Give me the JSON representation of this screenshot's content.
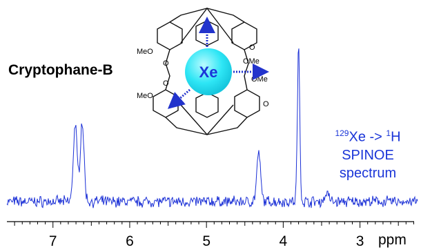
{
  "compound": {
    "name": "Cryptophane-B",
    "guest": "Xe",
    "substituent_label": "MeO",
    "substituent_label_alt": "OMe",
    "oxygen_label": "O"
  },
  "annotation": {
    "line1_mass_a": "129",
    "line1_text_a": "Xe -> ",
    "line1_mass_b": "1",
    "line1_text_b": "H",
    "line2": "SPINOE",
    "line3": "spectrum"
  },
  "colors": {
    "spectrum": "#1a2fd6",
    "annotation": "#1a35d8",
    "xenon": "#2ee6f5",
    "arrows": "#2233cc"
  },
  "chart_data": {
    "type": "line",
    "title": "",
    "xlabel": "ppm",
    "ylabel": "",
    "xlim": [
      7.6,
      2.25
    ],
    "x_reversed": true,
    "x_ticks": [
      7,
      6,
      5,
      4,
      3
    ],
    "grid": false,
    "series": [
      {
        "peaks": [
          {
            "x": 6.71,
            "height": 0.5
          },
          {
            "x": 6.62,
            "height": 0.52
          },
          {
            "x": 4.32,
            "height": 0.31
          },
          {
            "x": 3.8,
            "height": 1.0
          },
          {
            "x": 3.43,
            "height": 0.06
          }
        ]
      }
    ]
  }
}
